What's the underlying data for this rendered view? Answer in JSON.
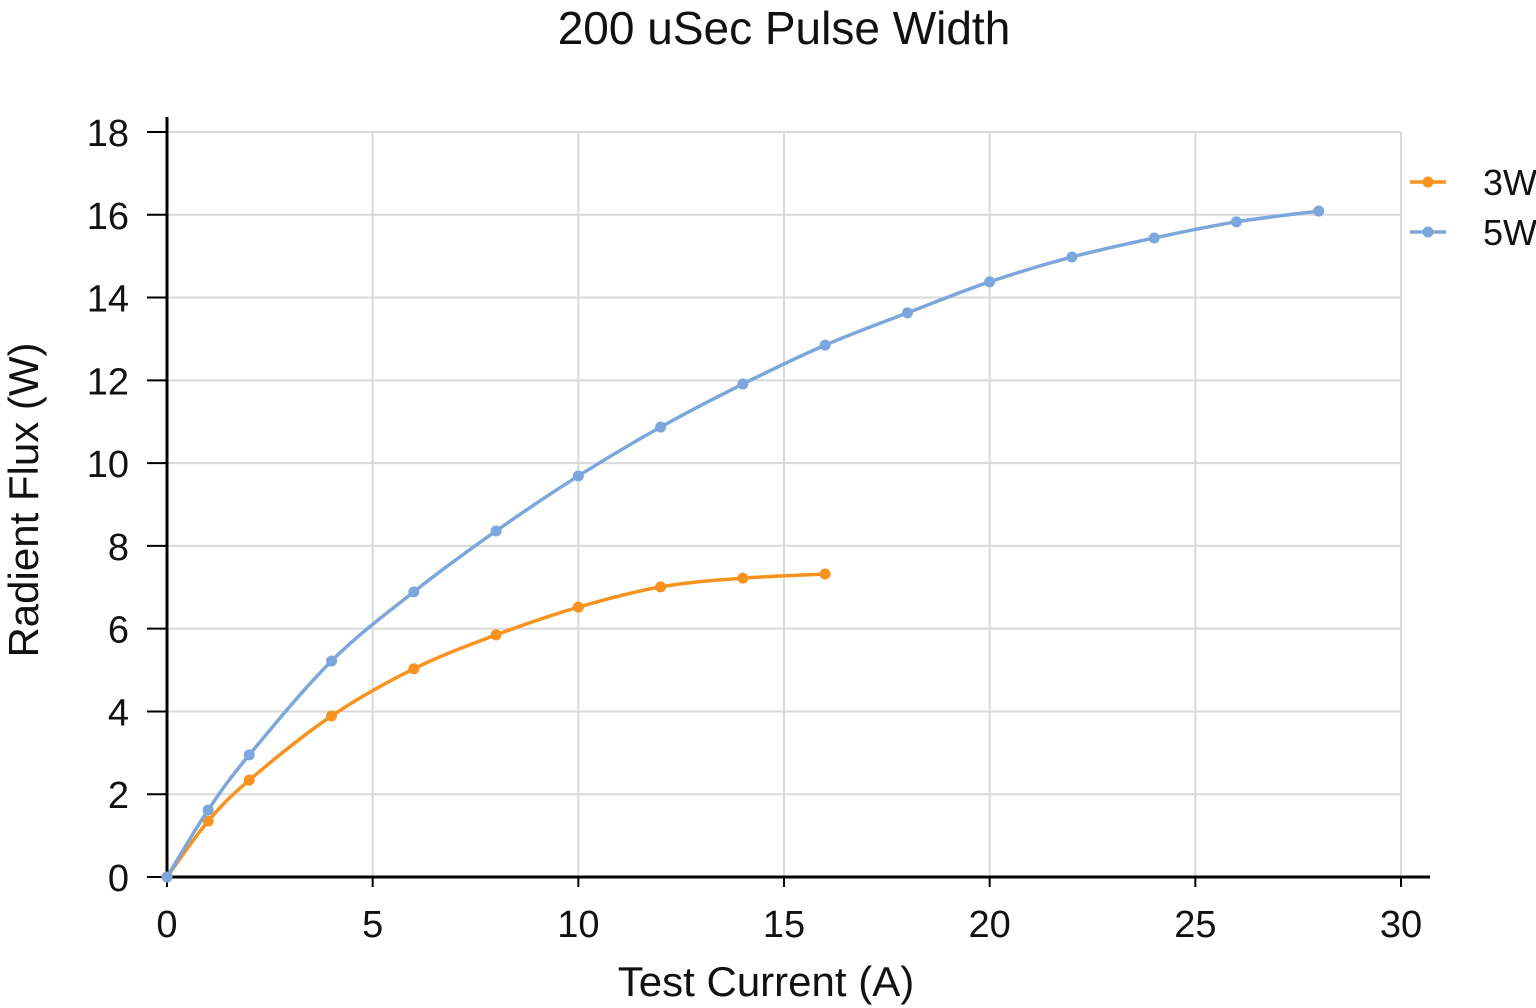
{
  "chart_data": {
    "type": "line",
    "title": "200 uSec Pulse Width",
    "xlabel": "Test Current (A)",
    "ylabel": "Radient Flux (W)",
    "xlim": [
      0,
      30
    ],
    "ylim": [
      0,
      18
    ],
    "xticks": [
      0,
      5,
      10,
      15,
      20,
      25,
      30
    ],
    "yticks": [
      0,
      2,
      4,
      6,
      8,
      10,
      12,
      14,
      16,
      18
    ],
    "grid": true,
    "smooth": true,
    "legend_position": "right",
    "series": [
      {
        "name": "3W",
        "color": "#f7931e",
        "x": [
          0,
          1,
          2,
          4,
          6,
          8,
          10,
          12,
          14,
          16
        ],
        "y": [
          0,
          1.35,
          2.34,
          3.89,
          5.03,
          5.85,
          6.52,
          7.01,
          7.22,
          7.32
        ]
      },
      {
        "name": "5W",
        "color": "#7ba7dc",
        "x": [
          0,
          1,
          2,
          4,
          6,
          8,
          10,
          12,
          14,
          16,
          18,
          20,
          22,
          24,
          26,
          28
        ],
        "y": [
          0,
          1.62,
          2.95,
          5.22,
          6.89,
          8.36,
          9.69,
          10.87,
          11.91,
          12.85,
          13.63,
          14.38,
          14.98,
          15.44,
          15.83,
          16.09
        ]
      }
    ]
  }
}
